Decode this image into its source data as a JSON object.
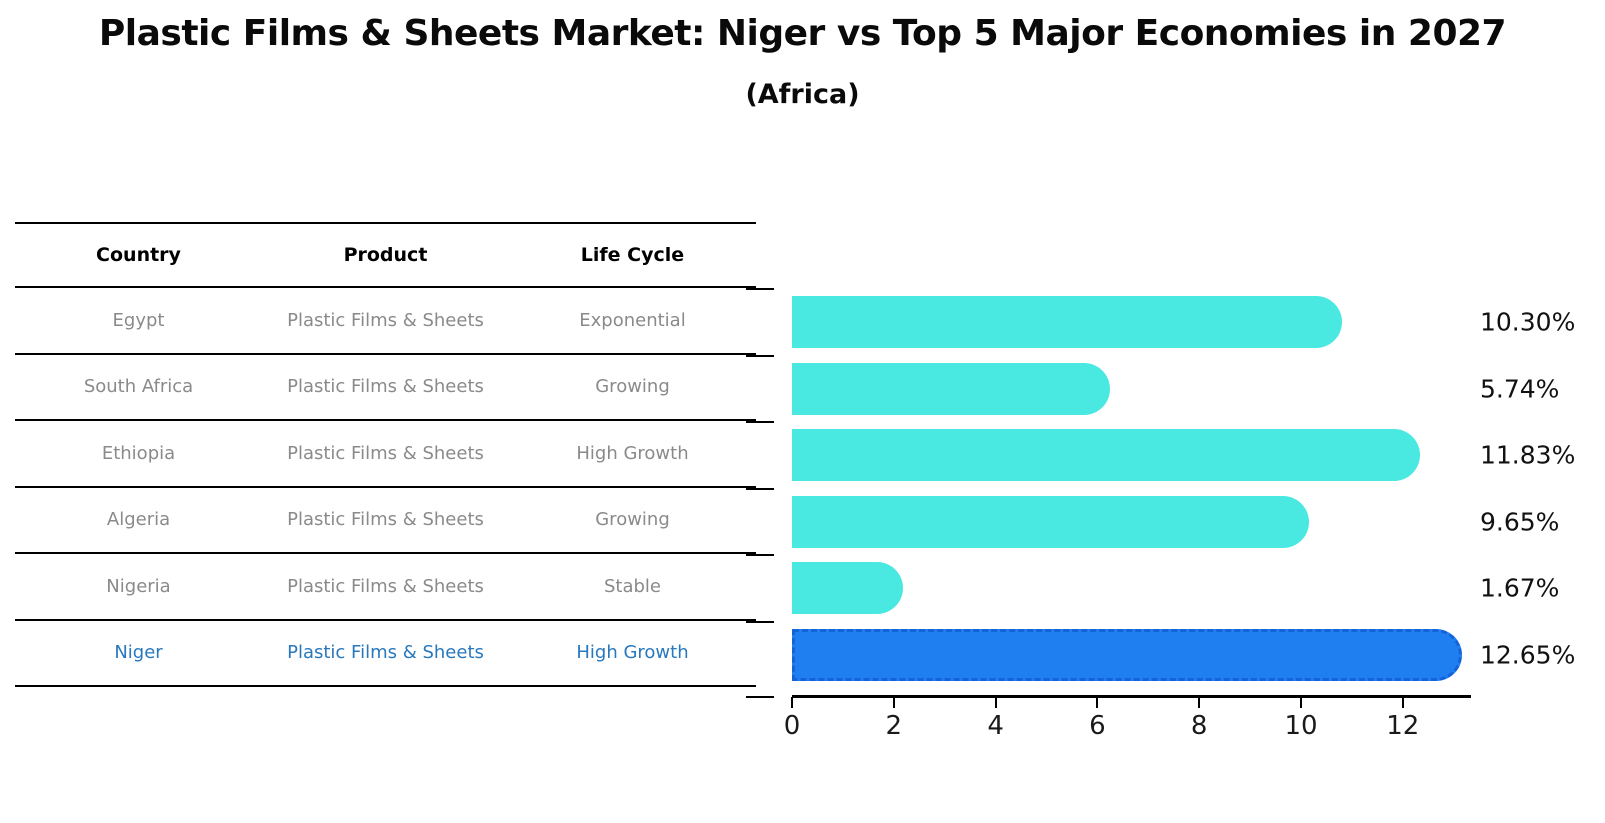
{
  "title": "Plastic Films & Sheets Market: Niger vs Top 5 Major Economies in 2027",
  "subtitle": "(Africa)",
  "table": {
    "headers": [
      "Country",
      "Product",
      "Life Cycle"
    ],
    "rows": [
      {
        "country": "Egypt",
        "product": "Plastic Films & Sheets",
        "life_cycle": "Exponential",
        "highlight": false
      },
      {
        "country": "South Africa",
        "product": "Plastic Films & Sheets",
        "life_cycle": "Growing",
        "highlight": false
      },
      {
        "country": "Ethiopia",
        "product": "Plastic Films & Sheets",
        "life_cycle": "High Growth",
        "highlight": false
      },
      {
        "country": "Algeria",
        "product": "Plastic Films & Sheets",
        "life_cycle": "Growing",
        "highlight": false
      },
      {
        "country": "Nigeria",
        "product": "Plastic Films & Sheets",
        "life_cycle": "Stable",
        "highlight": false
      },
      {
        "country": "Niger",
        "product": "Plastic Films & Sheets",
        "life_cycle": "High Growth",
        "highlight": true
      }
    ]
  },
  "chart_data": {
    "type": "bar",
    "orientation": "horizontal",
    "categories": [
      "Egypt",
      "South Africa",
      "Ethiopia",
      "Algeria",
      "Nigeria",
      "Niger"
    ],
    "values": [
      10.3,
      5.74,
      11.83,
      9.65,
      1.67,
      12.65
    ],
    "labels": [
      "10.30%",
      "5.74%",
      "11.83%",
      "9.65%",
      "1.67%",
      "12.65%"
    ],
    "xticks": [
      0,
      2,
      4,
      6,
      8,
      10,
      12
    ],
    "xlim": [
      0,
      13.3
    ],
    "grid": false,
    "legend": "none",
    "bar_color": "#49e8e1",
    "highlight_color": "#1f7ef0",
    "highlight_border_color": "#1463d8",
    "highlight_index": 5,
    "highlight_text_color": "#2878be"
  }
}
